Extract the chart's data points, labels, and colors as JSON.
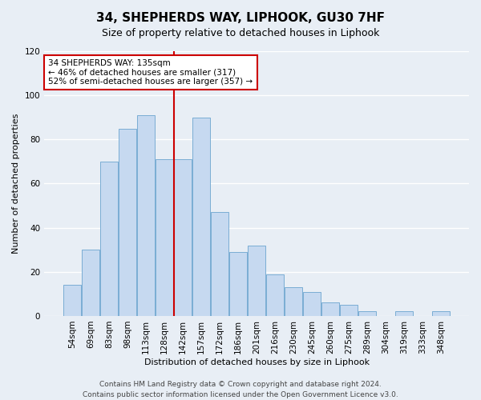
{
  "title": "34, SHEPHERDS WAY, LIPHOOK, GU30 7HF",
  "subtitle": "Size of property relative to detached houses in Liphook",
  "xlabel": "Distribution of detached houses by size in Liphook",
  "ylabel": "Number of detached properties",
  "bar_labels": [
    "54sqm",
    "69sqm",
    "83sqm",
    "98sqm",
    "113sqm",
    "128sqm",
    "142sqm",
    "157sqm",
    "172sqm",
    "186sqm",
    "201sqm",
    "216sqm",
    "230sqm",
    "245sqm",
    "260sqm",
    "275sqm",
    "289sqm",
    "304sqm",
    "319sqm",
    "333sqm",
    "348sqm"
  ],
  "bar_heights": [
    14,
    30,
    70,
    85,
    91,
    71,
    71,
    90,
    47,
    29,
    32,
    19,
    13,
    11,
    6,
    5,
    2,
    0,
    2,
    0,
    2
  ],
  "bar_color": "#c6d9f0",
  "bar_edge_color": "#7aadd4",
  "ylim": [
    0,
    120
  ],
  "yticks": [
    0,
    20,
    40,
    60,
    80,
    100,
    120
  ],
  "property_line_x": 5.5,
  "property_line_color": "#cc0000",
  "annotation_text": "34 SHEPHERDS WAY: 135sqm\n← 46% of detached houses are smaller (317)\n52% of semi-detached houses are larger (357) →",
  "annotation_box_color": "#ffffff",
  "annotation_box_edge_color": "#cc0000",
  "footer_line1": "Contains HM Land Registry data © Crown copyright and database right 2024.",
  "footer_line2": "Contains public sector information licensed under the Open Government Licence v3.0.",
  "background_color": "#e8eef5",
  "plot_bg_color": "#e8eef5",
  "grid_color": "#ffffff",
  "title_fontsize": 11,
  "subtitle_fontsize": 9,
  "axis_label_fontsize": 8,
  "tick_fontsize": 7.5,
  "footer_fontsize": 6.5
}
